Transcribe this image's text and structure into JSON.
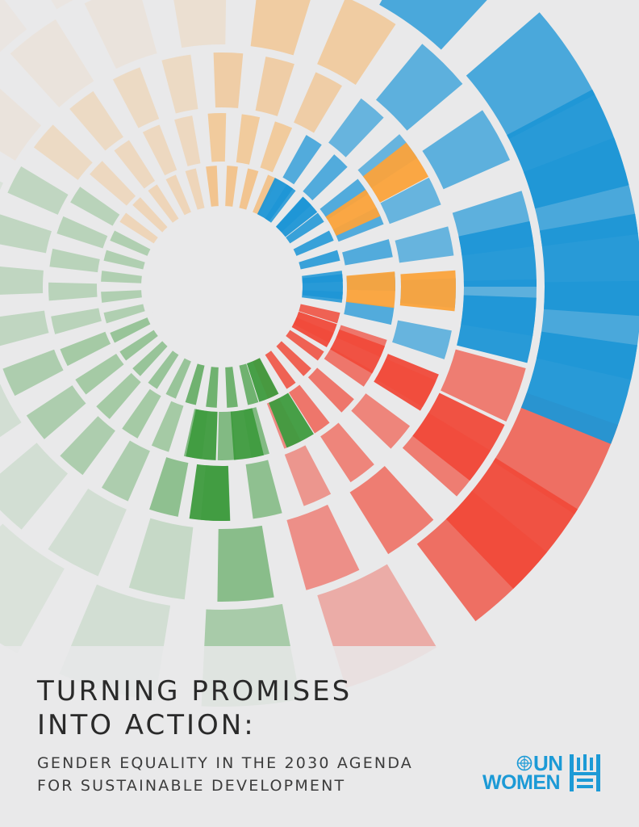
{
  "cover": {
    "title_lines": [
      "TURNING PROMISES",
      "INTO ACTION:"
    ],
    "subtitle_lines": [
      "GENDER EQUALITY IN THE 2030 AGENDA",
      "FOR SUSTAINABLE DEVELOPMENT"
    ]
  },
  "logo": {
    "line1": "UN",
    "line2": "WOMEN",
    "icons": [
      "un-globe-icon",
      "un-women-emblem-icon"
    ],
    "color": "#1c9ad6"
  },
  "palette": {
    "background": "#e9e9ea",
    "blue": "#1e96d6",
    "orange": "#fba33b",
    "red": "#f04a3a",
    "green": "#3e9b3e",
    "title_text": "#2a2a2a"
  }
}
